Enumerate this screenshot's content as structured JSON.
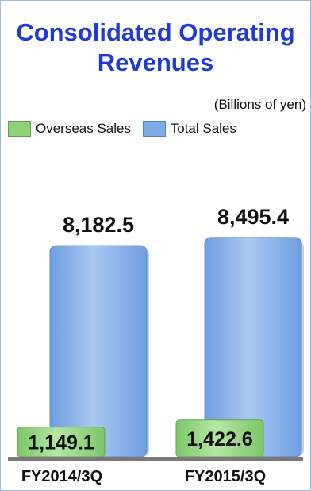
{
  "chart_data": {
    "type": "bar",
    "title": "Consolidated Operating Revenues",
    "unit_label": "(Billions of yen)",
    "categories": [
      "FY2014/3Q",
      "FY2015/3Q"
    ],
    "series": [
      {
        "name": "Overseas Sales",
        "values": [
          1149.1,
          1422.6
        ],
        "color": "#8fd07a",
        "labels": [
          "1,149.1",
          "1,422.6"
        ]
      },
      {
        "name": "Total Sales",
        "values": [
          8182.5,
          8495.4
        ],
        "color": "#7fabe6",
        "labels": [
          "8,182.5",
          "8,495.4"
        ]
      }
    ],
    "ylim": [
      0,
      10000
    ]
  }
}
